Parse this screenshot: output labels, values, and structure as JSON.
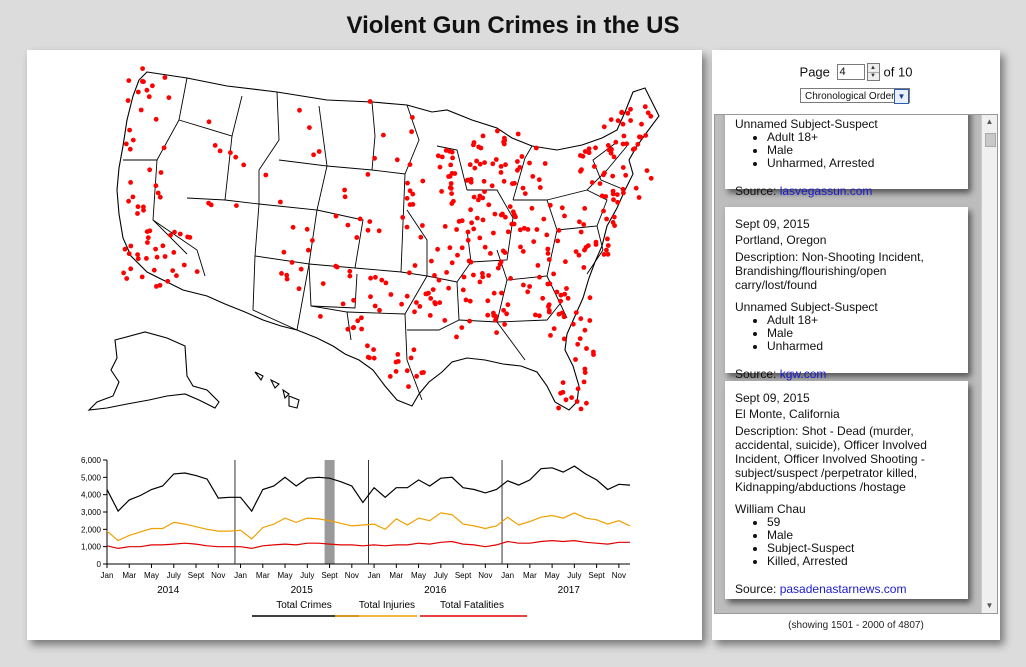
{
  "page_title": "Violent Gun Crimes in the US",
  "pager": {
    "prefix": "Page",
    "current": "4",
    "suffix": "of 10"
  },
  "sort": {
    "selected": "Chronological Order"
  },
  "showing": "(showing 1501 - 2000 of 4807)",
  "incidents": [
    {
      "person_type": "Unnamed Subject-Suspect",
      "details": [
        "Adult 18+",
        "Male",
        "Unharmed, Arrested"
      ],
      "source_label": "Source:",
      "source": "lasvegassun.com"
    },
    {
      "date": "Sept 09, 2015",
      "location": "Portland, Oregon",
      "description": "Description: Non-Shooting Incident, Brandishing/flourishing/open carry/lost/found",
      "person_type": "Unnamed Subject-Suspect",
      "details": [
        "Adult 18+",
        "Male",
        "Unharmed"
      ],
      "source_label": "Source:",
      "source": "kgw.com"
    },
    {
      "date": "Sept 09, 2015",
      "location": "El Monte, California",
      "description": "Description: Shot - Dead (murder, accidental, suicide), Officer Involved Incident, Officer Involved Shooting - subject/suspect /perpetrator killed, Kidnapping/abductions /hostage",
      "person_type": "William Chau",
      "details": [
        "59",
        "Male",
        "Subject-Suspect",
        "Killed, Arrested"
      ],
      "source_label": "Source:",
      "source": "pasadenastarnews.com"
    }
  ],
  "chart_data": {
    "type": "line",
    "x": [
      "2014-01",
      "2014-02",
      "2014-03",
      "2014-04",
      "2014-05",
      "2014-06",
      "2014-07",
      "2014-08",
      "2014-09",
      "2014-10",
      "2014-11",
      "2014-12",
      "2015-01",
      "2015-02",
      "2015-03",
      "2015-04",
      "2015-05",
      "2015-06",
      "2015-07",
      "2015-08",
      "2015-09",
      "2015-10",
      "2015-11",
      "2015-12",
      "2016-01",
      "2016-02",
      "2016-03",
      "2016-04",
      "2016-05",
      "2016-06",
      "2016-07",
      "2016-08",
      "2016-09",
      "2016-10",
      "2016-11",
      "2016-12",
      "2017-01",
      "2017-02",
      "2017-03",
      "2017-04",
      "2017-05",
      "2017-06",
      "2017-07",
      "2017-08",
      "2017-09",
      "2017-10",
      "2017-11",
      "2017-12"
    ],
    "x_tick_labels": [
      "Jan",
      "Mar",
      "May",
      "July",
      "Sept",
      "Nov"
    ],
    "year_labels": [
      "2014",
      "2015",
      "2016",
      "2017"
    ],
    "y_ticks": [
      "0",
      "1,000",
      "2,000",
      "3,000",
      "4,000",
      "5,000",
      "6,000"
    ],
    "ylim": [
      0,
      6000
    ],
    "highlight": "2015-09",
    "series": [
      {
        "name": "Total Crimes",
        "color": "#000000",
        "values": [
          4300,
          3050,
          3700,
          3950,
          4300,
          4500,
          5200,
          5250,
          5100,
          4900,
          3800,
          3850,
          3850,
          3050,
          4300,
          4500,
          5000,
          4500,
          4950,
          5000,
          4950,
          4750,
          4500,
          3550,
          4400,
          3850,
          4400,
          4400,
          4850,
          4500,
          4950,
          5000,
          4400,
          4300,
          4100,
          4300,
          4800,
          4550,
          4850,
          5500,
          5550,
          5300,
          5650,
          5200,
          4850,
          4300,
          4600,
          4550
        ]
      },
      {
        "name": "Total Injuries",
        "color": "#f0a000",
        "values": [
          1900,
          1350,
          1650,
          1850,
          2050,
          2050,
          2400,
          2300,
          2150,
          2000,
          1900,
          1900,
          1950,
          1450,
          2100,
          2300,
          2650,
          2400,
          2650,
          2600,
          2500,
          2350,
          2200,
          2250,
          2300,
          2000,
          2600,
          2250,
          2650,
          2500,
          2950,
          2850,
          2300,
          2200,
          2050,
          2200,
          2700,
          2250,
          2450,
          2700,
          2800,
          2650,
          2950,
          2650,
          2550,
          2300,
          2500,
          2200
        ]
      },
      {
        "name": "Total Fatalities",
        "color": "#e00000",
        "values": [
          1050,
          900,
          1000,
          1000,
          1100,
          1100,
          1150,
          1200,
          1150,
          1050,
          1000,
          1000,
          1000,
          900,
          1050,
          1100,
          1150,
          1100,
          1200,
          1200,
          1150,
          1100,
          1100,
          1050,
          1100,
          1050,
          1100,
          1100,
          1200,
          1150,
          1250,
          1300,
          1150,
          1100,
          1000,
          1100,
          1300,
          1200,
          1200,
          1300,
          1350,
          1300,
          1350,
          1250,
          1200,
          1150,
          1250,
          1250
        ]
      }
    ]
  }
}
